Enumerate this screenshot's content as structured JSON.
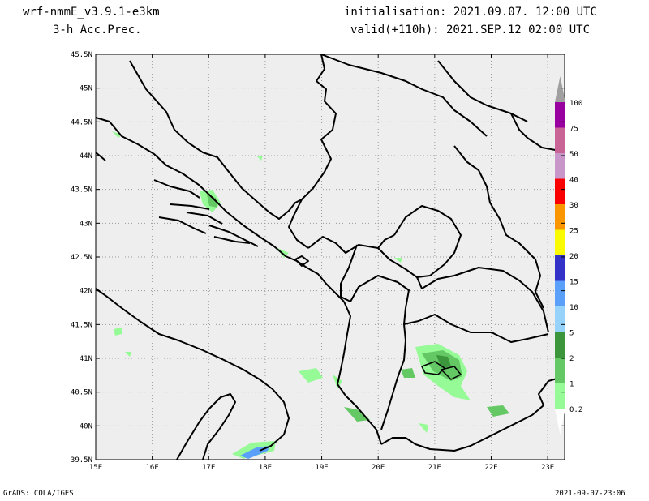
{
  "header": {
    "model": "wrf-nmmE_v3.9.1-e3km",
    "field": "3-h Acc.Prec.",
    "init": "initialisation: 2021.09.07.  12:00 UTC",
    "valid": "valid(+110h): 2021.SEP.12 02:00 UTC"
  },
  "map": {
    "lat_labels": [
      "45.5N",
      "45N",
      "44.5N",
      "44N",
      "43.5N",
      "43N",
      "42.5N",
      "42N",
      "41.5N",
      "41N",
      "40.5N",
      "40N",
      "39.5N"
    ],
    "lon_labels": [
      "15E",
      "16E",
      "17E",
      "18E",
      "19E",
      "20E",
      "21E",
      "22E",
      "23E"
    ],
    "background_color": "#eeeeee",
    "grid": true
  },
  "colorbar": {
    "labels": [
      "100",
      "75",
      "50",
      "40",
      "30",
      "25",
      "20",
      "15",
      "10",
      "5",
      "2",
      "1",
      "0.2"
    ],
    "colors": [
      "#a0a0a0",
      "#9900a0",
      "#c86496",
      "#c896c8",
      "#fa0000",
      "#fa9600",
      "#fafa00",
      "#3232c8",
      "#5aa0fa",
      "#96d2fa",
      "#3c963c",
      "#64c864",
      "#96fa96"
    ]
  },
  "footer": {
    "left": "GrADS: COLA/IGES",
    "right": "2021-09-07-23:06"
  }
}
